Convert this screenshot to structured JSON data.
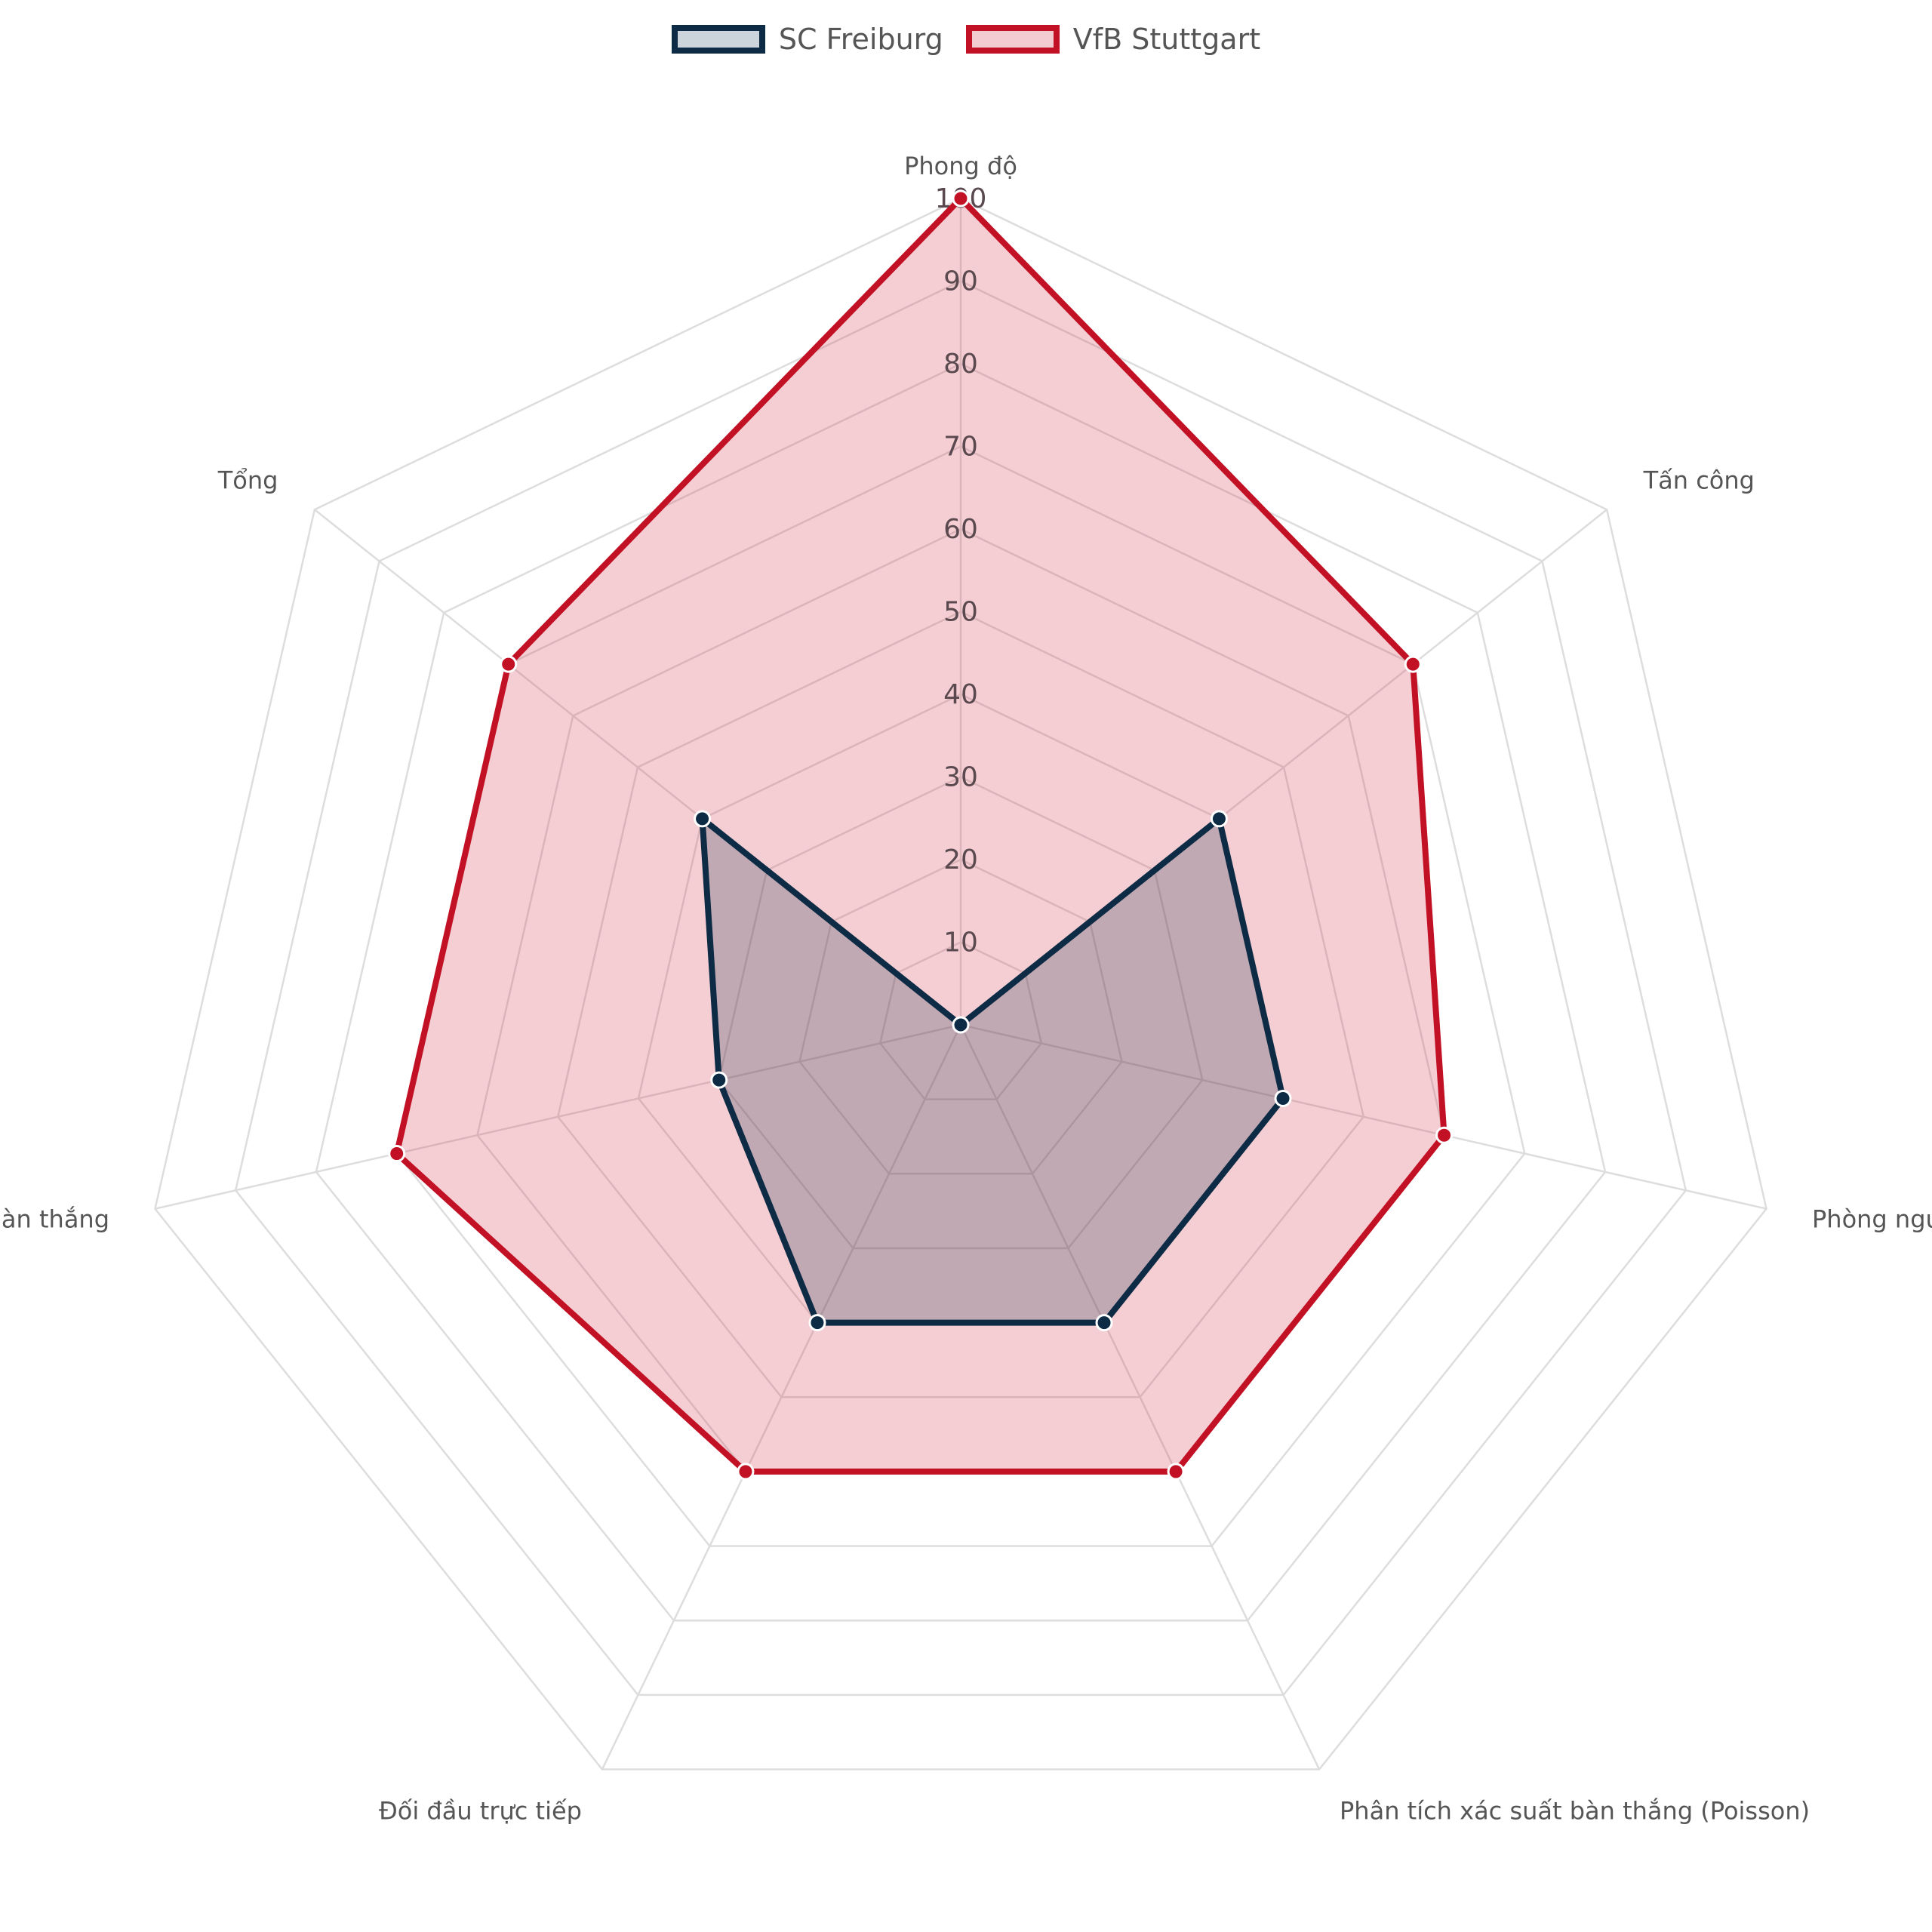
{
  "chart_data": {
    "type": "radar",
    "axes": [
      "Phong độ",
      "Tấn công",
      "Phòng ngự",
      "Phân tích xác suất bàn thắng (Poisson)",
      "Đối đầu trực tiếp",
      "Bàn thắng",
      "Tổng"
    ],
    "radial_ticks": [
      "10",
      "20",
      "30",
      "40",
      "50",
      "60",
      "70",
      "80",
      "90",
      "100"
    ],
    "rmax": 100,
    "legend_position": "top-center",
    "series": [
      {
        "name": "SC Freiburg",
        "values": [
          0,
          40,
          40,
          40,
          40,
          30,
          40
        ],
        "color": "#0d2b45",
        "fill": "rgba(13,43,69,0.22)"
      },
      {
        "name": "VfB Stuttgart",
        "values": [
          100,
          70,
          60,
          60,
          60,
          70,
          70
        ],
        "color": "#c21125",
        "fill": "rgba(210,60,80,0.25)"
      }
    ]
  }
}
